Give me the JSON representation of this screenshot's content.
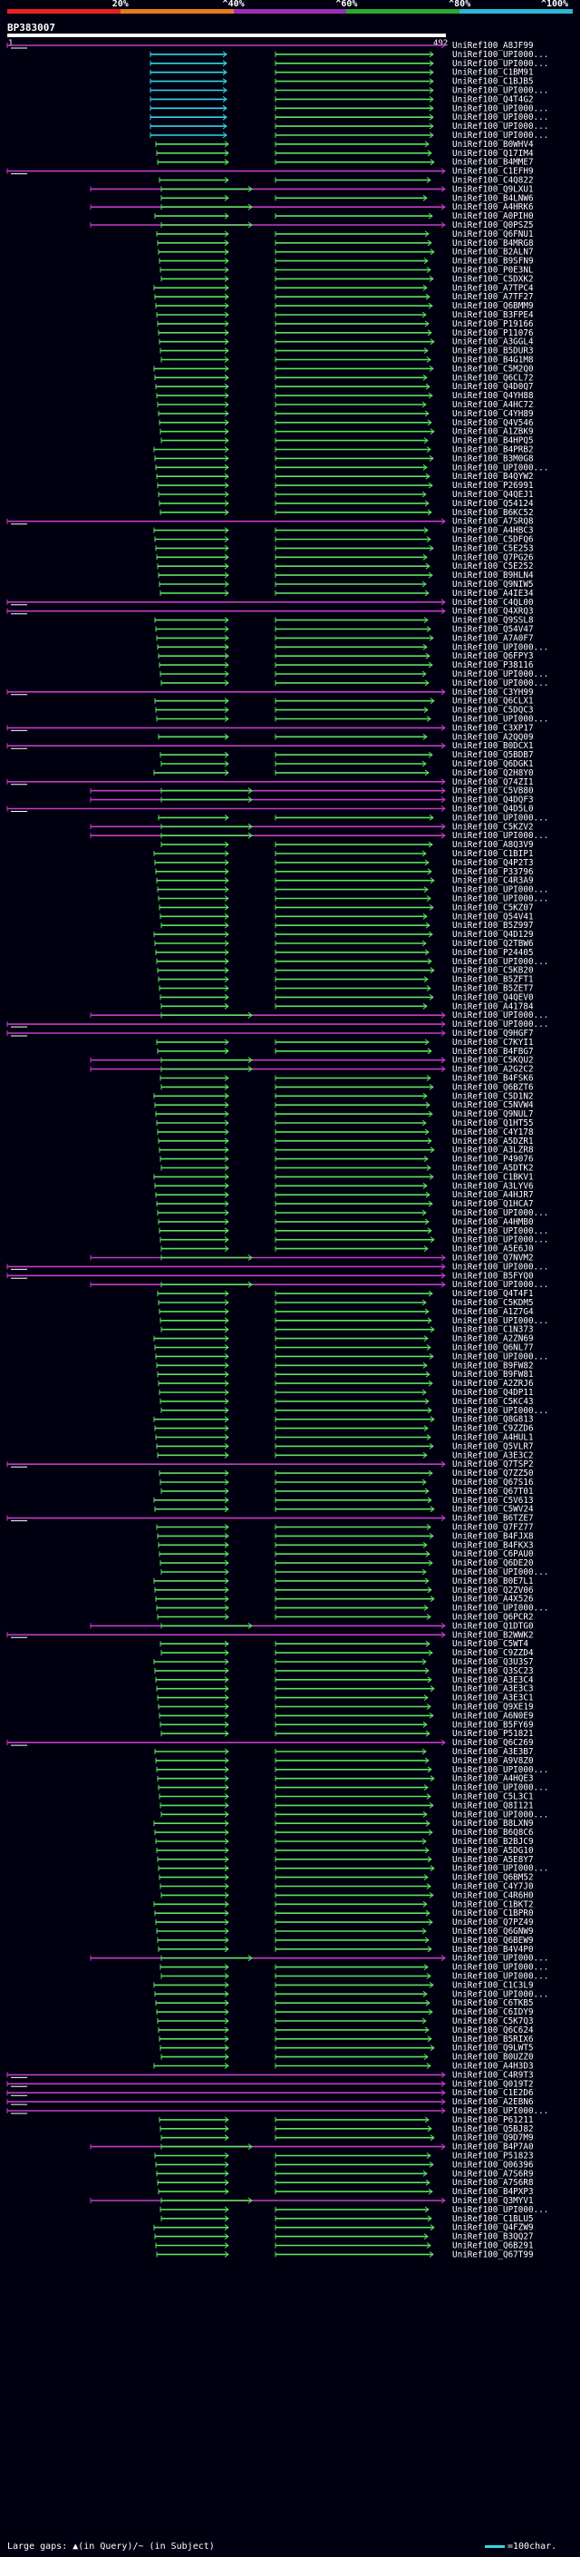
{
  "scale": {
    "labels": [
      "20%",
      "^40%",
      "^60%",
      "^80%",
      "^100%"
    ],
    "colors": [
      "#e8211f",
      "#e87a1c",
      "#9b2fb8",
      "#2ea82e",
      "#2bb8d8"
    ]
  },
  "query": {
    "name": "BP383007",
    "start": "1",
    "end": "492"
  },
  "colors": {
    "green": "#5ee05e",
    "magenta": "#c43cc4",
    "cyan": "#33d6e8",
    "white": "#ffffff"
  },
  "hits": [
    "UniRef100_A8JF99",
    "UniRef100_UPI000...",
    "UniRef100_UPI000...",
    "UniRef100_C1BM91",
    "UniRef100_C1BJB5",
    "UniRef100_UPI000...",
    "UniRef100_Q4T4G2",
    "UniRef100_UPI000...",
    "UniRef100_UPI000...",
    "UniRef100_UPI000...",
    "UniRef100_UPI000...",
    "UniRef100_B0WHV4",
    "UniRef100_Q17IM4",
    "UniRef100_B4MME7",
    "UniRef100_C1EFH9",
    "UniRef100_C4Q822",
    "UniRef100_Q9LXU1",
    "UniRef100_B4LNW6",
    "UniRef100_A4HRK6",
    "UniRef100_A0PIH0",
    "UniRef100_Q0PSZ5",
    "UniRef100_Q6FNU1",
    "UniRef100_B4MRG8",
    "UniRef100_B2ALN7",
    "UniRef100_B9SFN9",
    "UniRef100_P0E3NL",
    "UniRef100_C5DXK2",
    "UniRef100_A7TPC4",
    "UniRef100_A7TF27",
    "UniRef100_Q6BMM9",
    "UniRef100_B3FPE4",
    "UniRef100_P19166",
    "UniRef100_P11076",
    "UniRef100_A3GGL4",
    "UniRef100_B5DUR3",
    "UniRef100_B4G1M8",
    "UniRef100_C5M2Q0",
    "UniRef100_Q6CL72",
    "UniRef100_Q4D0Q7",
    "UniRef100_Q4YH88",
    "UniRef100_A4HC72",
    "UniRef100_C4YH89",
    "UniRef100_Q4V546",
    "UniRef100_A1ZBK9",
    "UniRef100_B4HPQ5",
    "UniRef100_B4PRB2",
    "UniRef100_B3M0G8",
    "UniRef100_UPI000...",
    "UniRef100_B4QYW2",
    "UniRef100_P26991",
    "UniRef100_Q4QEJ1",
    "UniRef100_Q54124",
    "UniRef100_B6KC52",
    "UniRef100_A7SRQ8",
    "UniRef100_A4HBC3",
    "UniRef100_C5DFQ6",
    "UniRef100_C5E253",
    "UniRef100_Q7PG26",
    "UniRef100_C5E252",
    "UniRef100_B9HLN4",
    "UniRef100_Q9NIW5",
    "UniRef100_A4IE34",
    "UniRef100_C4QL00",
    "UniRef100_Q4XRQ3",
    "UniRef100_Q9SSL8",
    "UniRef100_Q54V47",
    "UniRef100_A7A0F7",
    "UniRef100_UPI000...",
    "UniRef100_Q6FPY3",
    "UniRef100_P38116",
    "UniRef100_UPI000...",
    "UniRef100_UPI000...",
    "UniRef100_C3YH99",
    "UniRef100_Q6CLX1",
    "UniRef100_C5DQC3",
    "UniRef100_UPI000...",
    "UniRef100_C3XP17",
    "UniRef100_A2QQ09",
    "UniRef100_B0DCX1",
    "UniRef100_Q5BDB7",
    "UniRef100_Q6DGK1",
    "UniRef100_Q2H8Y0",
    "UniRef100_Q74ZI1",
    "UniRef100_C5VB80",
    "UniRef100_Q4DQF3",
    "UniRef100_Q4D5L0",
    "UniRef100_UPI000...",
    "UniRef100_C5KZV2",
    "UniRef100_UPI000...",
    "UniRef100_A8Q3V9",
    "UniRef100_C1BIP1",
    "UniRef100_Q4P2T3",
    "UniRef100_P33796",
    "UniRef100_C4R3A9",
    "UniRef100_UPI000...",
    "UniRef100_UPI000...",
    "UniRef100_C5KZ07",
    "UniRef100_Q54V41",
    "UniRef100_B5Z997",
    "UniRef100_Q4D129",
    "UniRef100_Q2TBW6",
    "UniRef100_P24405",
    "UniRef100_UPI000...",
    "UniRef100_C5KB20",
    "UniRef100_B5ZFT1",
    "UniRef100_B5ZET7",
    "UniRef100_Q4QEV0",
    "UniRef100_A41784",
    "UniRef100_UPI000...",
    "UniRef100_UPI000...",
    "UniRef100_Q9HGF7",
    "UniRef100_C7KYI1",
    "UniRef100_B4FBG7",
    "UniRef100_C5KQU2",
    "UniRef100_A2G2C2",
    "UniRef100_B4FSK6",
    "UniRef100_Q6BZT6",
    "UniRef100_C5D1N2",
    "UniRef100_C5NVW4",
    "UniRef100_Q9NUL7",
    "UniRef100_Q1HT55",
    "UniRef100_C4Y178",
    "UniRef100_A5DZR1",
    "UniRef100_A3LZR8",
    "UniRef100_P49076",
    "UniRef100_A5DTK2",
    "UniRef100_C1BKV1",
    "UniRef100_A3LYV6",
    "UniRef100_A4HJR7",
    "UniRef100_Q1HCA7",
    "UniRef100_UPI000...",
    "UniRef100_A4HMB0",
    "UniRef100_UPI000...",
    "UniRef100_UPI000...",
    "UniRef100_A5E6J0",
    "UniRef100_Q7NVM2",
    "UniRef100_UPI000...",
    "UniRef100_B5FYQ0",
    "UniRef100_UPI000...",
    "UniRef100_Q4T4F1",
    "UniRef100_C5KDM5",
    "UniRef100_A1Z7G4",
    "UniRef100_UPI000...",
    "UniRef100_C1N373",
    "UniRef100_A2ZN69",
    "UniRef100_Q6NL77",
    "UniRef100_UPI000...",
    "UniRef100_B9FW82",
    "UniRef100_B9FW81",
    "UniRef100_A2ZRJ6",
    "UniRef100_Q4DP11",
    "UniRef100_C5KC43",
    "UniRef100_UPI000...",
    "UniRef100_Q8G813",
    "UniRef100_C9ZZD6",
    "UniRef100_A4HUL1",
    "UniRef100_Q5VLR7",
    "UniRef100_A3E3C2",
    "UniRef100_Q7TSP2",
    "UniRef100_Q7ZZ50",
    "UniRef100_Q67S16",
    "UniRef100_Q67T01",
    "UniRef100_C5V613",
    "UniRef100_C5WV24",
    "UniRef100_B6TZE7",
    "UniRef100_Q7FZ77",
    "UniRef100_B4FJX8",
    "UniRef100_B4FKX3",
    "UniRef100_C6PAU0",
    "UniRef100_Q6DE20",
    "UniRef100_UPI000...",
    "UniRef100_B0E7L1",
    "UniRef100_Q2ZV06",
    "UniRef100_A4X526",
    "UniRef100_UPI000...",
    "UniRef100_Q6PCR2",
    "UniRef100_Q1DTG0",
    "UniRef100_B2WWK2",
    "UniRef100_C5WT4",
    "UniRef100_C9ZZD4",
    "UniRef100_Q3U3S7",
    "UniRef100_Q3SC23",
    "UniRef100_A3E3C4",
    "UniRef100_A3E3C3",
    "UniRef100_A3E3C1",
    "UniRef100_Q9XE19",
    "UniRef100_A6N0E9",
    "UniRef100_B5FY69",
    "UniRef100_P51821",
    "UniRef100_Q6C269",
    "UniRef100_A3E3B7",
    "UniRef100_A9V8Z0",
    "UniRef100_UPI000...",
    "UniRef100_A4HQE3",
    "UniRef100_UPI000...",
    "UniRef100_C5L3C1",
    "UniRef100_Q8I121",
    "UniRef100_UPI000...",
    "UniRef100_B8LXN9",
    "UniRef100_B6Q8C6",
    "UniRef100_B2BJC9",
    "UniRef100_A5DG10",
    "UniRef100_A5E8Y7",
    "UniRef100_UPI000...",
    "UniRef100_Q6BM52",
    "UniRef100_C4Y7J0",
    "UniRef100_C4R6H0",
    "UniRef100_C1BKT2",
    "UniRef100_C1BPR0",
    "UniRef100_Q7PZ49",
    "UniRef100_Q6GNW9",
    "UniRef100_Q6BEW9",
    "UniRef100_B4V4P0",
    "UniRef100_UPI000...",
    "UniRef100_UPI000...",
    "UniRef100_UPI000...",
    "UniRef100_C1C3L9",
    "UniRef100_UPI000...",
    "UniRef100_C6TKB5",
    "UniRef100_C6IDY9",
    "UniRef100_C5K7Q3",
    "UniRef100_Q6C624",
    "UniRef100_B5RIX6",
    "UniRef100_Q9LWT5",
    "UniRef100_B0UZZ0",
    "UniRef100_A4H3D3",
    "UniRef100_C4R9T3",
    "UniRef100_Q019T2",
    "UniRef100_C1E2D6",
    "UniRef100_A2EBN6",
    "UniRef100_UPI000...",
    "UniRef100_P61211",
    "UniRef100_Q5BJ82",
    "UniRef100_Q9D7M9",
    "UniRef100_B4P7A0",
    "UniRef100_P51823",
    "UniRef100_Q06396",
    "UniRef100_A7S6R9",
    "UniRef100_A7S6R8",
    "UniRef100_B4PXP3",
    "UniRef100_Q3MYV1",
    "UniRef100_UPI000...",
    "UniRef100_C1BLU5",
    "UniRef100_Q4FZW9",
    "UniRef100_B3QQ27",
    "UniRef100_Q6B291",
    "UniRef100_Q67T99"
  ],
  "legend": {
    "text": "Large gaps: ▲(in Query)/~ (in Subject)",
    "scale_text": "=100char."
  }
}
